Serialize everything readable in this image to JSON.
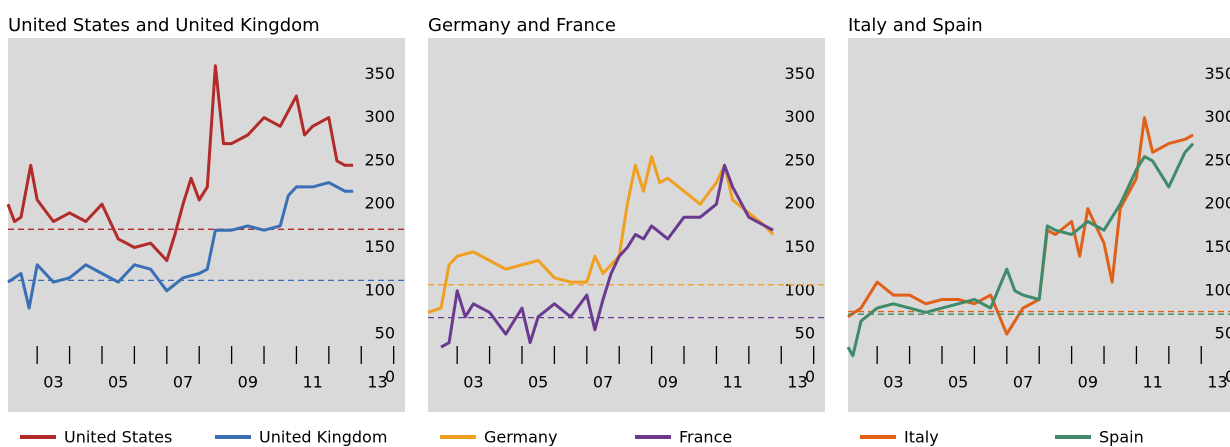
{
  "chart_data": [
    {
      "type": "line",
      "title": "United States and United Kingdom",
      "xlim": [
        2002.1,
        2014.35
      ],
      "ylim": [
        -40,
        392
      ],
      "yticks": [
        0,
        50,
        100,
        150,
        200,
        250,
        300,
        350
      ],
      "xtick_marks": [
        2003,
        2004,
        2005,
        2006,
        2007,
        2008,
        2009,
        2010,
        2011,
        2012,
        2013,
        2014
      ],
      "xticks": [
        {
          "value": 2003.5,
          "label": "03"
        },
        {
          "value": 2005.5,
          "label": "05"
        },
        {
          "value": 2007.5,
          "label": "07"
        },
        {
          "value": 2009.5,
          "label": "09"
        },
        {
          "value": 2011.5,
          "label": "11"
        },
        {
          "value": 2013.5,
          "label": "13"
        }
      ],
      "series": [
        {
          "name": "United States",
          "color": "#b22a2a",
          "mean": 171,
          "x": [
            2002.1,
            2002.3,
            2002.5,
            2002.8,
            2003.0,
            2003.5,
            2004.0,
            2004.5,
            2005.0,
            2005.5,
            2006.0,
            2006.5,
            2007.0,
            2007.25,
            2007.5,
            2007.75,
            2008.0,
            2008.25,
            2008.5,
            2008.75,
            2009.0,
            2009.5,
            2010.0,
            2010.5,
            2011.0,
            2011.25,
            2011.5,
            2012.0,
            2012.25,
            2012.5,
            2012.75
          ],
          "values": [
            200,
            180,
            185,
            245,
            205,
            180,
            190,
            180,
            200,
            160,
            150,
            155,
            135,
            165,
            200,
            230,
            205,
            220,
            360,
            270,
            270,
            280,
            300,
            290,
            325,
            280,
            290,
            300,
            250,
            245,
            245
          ]
        },
        {
          "name": "United Kingdom",
          "color": "#3a6fb5",
          "mean": 112,
          "x": [
            2002.1,
            2002.5,
            2002.75,
            2003.0,
            2003.5,
            2004.0,
            2004.5,
            2005.0,
            2005.5,
            2006.0,
            2006.5,
            2007.0,
            2007.5,
            2008.0,
            2008.25,
            2008.5,
            2009.0,
            2009.5,
            2010.0,
            2010.5,
            2010.75,
            2011.0,
            2011.5,
            2012.0,
            2012.5,
            2012.75
          ],
          "values": [
            110,
            120,
            80,
            130,
            110,
            115,
            130,
            120,
            110,
            130,
            125,
            100,
            115,
            120,
            125,
            170,
            170,
            175,
            170,
            175,
            210,
            220,
            220,
            225,
            215,
            215
          ]
        }
      ]
    },
    {
      "type": "line",
      "title": "Germany and France",
      "xlim": [
        2002.1,
        2014.35
      ],
      "ylim": [
        -40,
        392
      ],
      "yticks": [
        0,
        50,
        100,
        150,
        200,
        250,
        300,
        350
      ],
      "xtick_marks": [
        2003,
        2004,
        2005,
        2006,
        2007,
        2008,
        2009,
        2010,
        2011,
        2012,
        2013,
        2014
      ],
      "xticks": [
        {
          "value": 2003.5,
          "label": "03"
        },
        {
          "value": 2005.5,
          "label": "05"
        },
        {
          "value": 2007.5,
          "label": "07"
        },
        {
          "value": 2009.5,
          "label": "09"
        },
        {
          "value": 2011.5,
          "label": "11"
        },
        {
          "value": 2013.5,
          "label": "13"
        }
      ],
      "series": [
        {
          "name": "Germany",
          "color": "#f0a020",
          "mean": 107,
          "x": [
            2002.1,
            2002.5,
            2002.75,
            2003.0,
            2003.5,
            2004.0,
            2004.5,
            2005.0,
            2005.5,
            2006.0,
            2006.5,
            2007.0,
            2007.25,
            2007.5,
            2007.75,
            2008.0,
            2008.25,
            2008.5,
            2008.75,
            2009.0,
            2009.25,
            2009.5,
            2010.0,
            2010.5,
            2011.0,
            2011.25,
            2011.5,
            2012.0,
            2012.5,
            2012.75
          ],
          "values": [
            75,
            80,
            130,
            140,
            145,
            135,
            125,
            130,
            135,
            115,
            110,
            110,
            140,
            120,
            130,
            140,
            200,
            245,
            215,
            255,
            225,
            230,
            215,
            200,
            225,
            245,
            205,
            190,
            175,
            165
          ]
        },
        {
          "name": "France",
          "color": "#6a3a90",
          "mean": 69,
          "x": [
            2002.5,
            2002.75,
            2003.0,
            2003.25,
            2003.5,
            2004.0,
            2004.5,
            2005.0,
            2005.25,
            2005.5,
            2006.0,
            2006.5,
            2007.0,
            2007.25,
            2007.5,
            2007.75,
            2008.0,
            2008.25,
            2008.5,
            2008.75,
            2009.0,
            2009.5,
            2010.0,
            2010.5,
            2011.0,
            2011.25,
            2011.5,
            2012.0,
            2012.5,
            2012.75
          ],
          "values": [
            35,
            40,
            100,
            70,
            85,
            75,
            50,
            80,
            40,
            70,
            85,
            70,
            95,
            55,
            90,
            120,
            140,
            150,
            165,
            160,
            175,
            160,
            185,
            185,
            200,
            245,
            220,
            185,
            175,
            170
          ]
        }
      ]
    },
    {
      "type": "line",
      "title": "Italy and Spain",
      "xlim": [
        2002.1,
        2014.35
      ],
      "ylim": [
        -40,
        392
      ],
      "yticks": [
        0,
        50,
        100,
        150,
        200,
        250,
        300,
        350
      ],
      "xtick_marks": [
        2003,
        2004,
        2005,
        2006,
        2007,
        2008,
        2009,
        2010,
        2011,
        2012,
        2013,
        2014
      ],
      "xticks": [
        {
          "value": 2003.5,
          "label": "03"
        },
        {
          "value": 2005.5,
          "label": "05"
        },
        {
          "value": 2007.5,
          "label": "07"
        },
        {
          "value": 2009.5,
          "label": "09"
        },
        {
          "value": 2011.5,
          "label": "11"
        },
        {
          "value": 2013.5,
          "label": "13"
        }
      ],
      "series": [
        {
          "name": "Italy",
          "color": "#e0601a",
          "mean": 76,
          "x": [
            2002.1,
            2002.5,
            2003.0,
            2003.5,
            2004.0,
            2004.5,
            2005.0,
            2005.5,
            2006.0,
            2006.5,
            2007.0,
            2007.5,
            2008.0,
            2008.25,
            2008.5,
            2009.0,
            2009.25,
            2009.5,
            2010.0,
            2010.25,
            2010.5,
            2011.0,
            2011.25,
            2011.5,
            2012.0,
            2012.5,
            2012.75
          ],
          "values": [
            70,
            80,
            110,
            95,
            95,
            85,
            90,
            90,
            85,
            95,
            50,
            80,
            90,
            170,
            165,
            180,
            140,
            195,
            155,
            110,
            195,
            230,
            300,
            260,
            270,
            275,
            280
          ]
        },
        {
          "name": "Spain",
          "color": "#3f8a6a",
          "mean": 73,
          "x": [
            2002.1,
            2002.25,
            2002.5,
            2003.0,
            2003.5,
            2004.0,
            2004.5,
            2005.0,
            2005.5,
            2006.0,
            2006.5,
            2007.0,
            2007.25,
            2007.5,
            2008.0,
            2008.25,
            2008.5,
            2009.0,
            2009.5,
            2010.0,
            2010.5,
            2011.0,
            2011.25,
            2011.5,
            2012.0,
            2012.5,
            2012.75
          ],
          "values": [
            35,
            25,
            65,
            80,
            85,
            80,
            75,
            80,
            85,
            90,
            80,
            125,
            100,
            95,
            90,
            175,
            170,
            165,
            180,
            170,
            200,
            240,
            255,
            250,
            220,
            260,
            270
          ]
        }
      ]
    }
  ]
}
